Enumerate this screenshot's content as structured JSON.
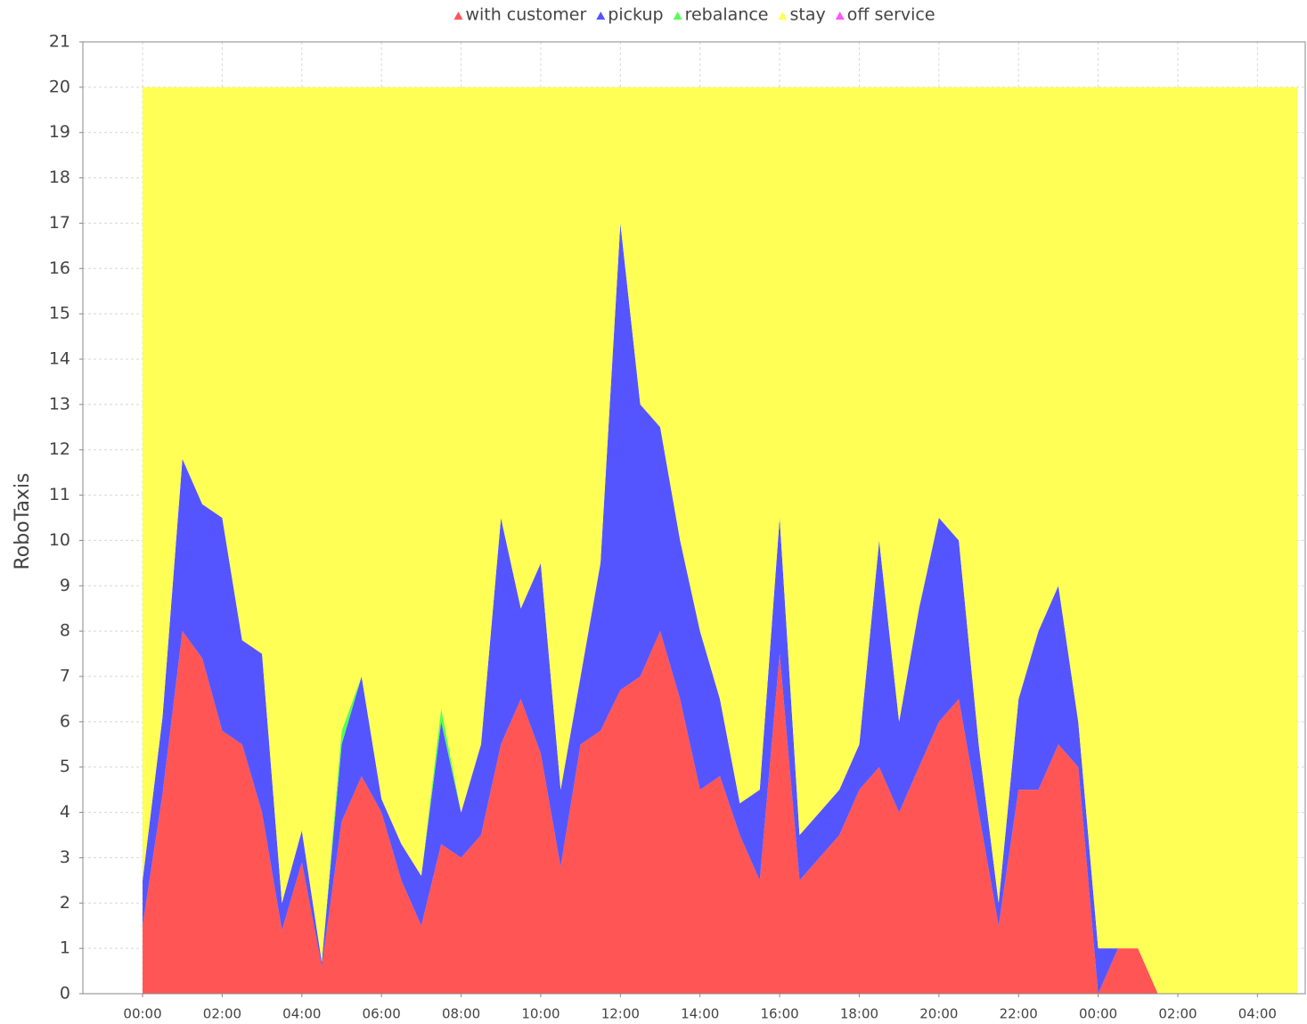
{
  "chart_data": {
    "type": "stacked_area",
    "y_label": "RoboTaxis",
    "x": [
      0,
      0.5,
      1,
      1.5,
      2,
      2.5,
      3,
      3.5,
      4,
      4.5,
      5,
      5.5,
      6,
      6.5,
      7,
      7.5,
      8,
      8.5,
      9,
      9.5,
      10,
      10.5,
      11,
      11.5,
      12,
      12.5,
      13,
      13.5,
      14,
      14.5,
      15,
      15.5,
      16,
      16.5,
      17,
      17.5,
      18,
      18.5,
      19,
      19.5,
      20,
      20.5,
      21,
      21.5,
      22,
      22.5,
      23,
      23.5,
      24,
      24.5,
      25,
      25.5,
      26,
      27,
      28,
      29
    ],
    "series": [
      {
        "name": "with customer",
        "color": "#ff5555",
        "values": [
          1.5,
          4.4,
          8.0,
          7.4,
          5.8,
          5.5,
          4.0,
          1.4,
          2.9,
          0.6,
          3.8,
          4.8,
          4.0,
          2.5,
          1.5,
          3.3,
          3.0,
          3.5,
          5.5,
          6.5,
          5.3,
          2.8,
          5.5,
          5.8,
          6.7,
          7.0,
          8.0,
          6.5,
          4.5,
          4.8,
          3.5,
          2.5,
          7.5,
          2.5,
          3.0,
          3.5,
          4.5,
          5.0,
          4.0,
          5.0,
          6.0,
          6.5,
          4.0,
          1.5,
          4.5,
          4.5,
          5.5,
          5.0,
          0,
          1,
          1,
          0,
          0,
          0,
          0,
          0
        ]
      },
      {
        "name": "pickup",
        "color": "#5555ff",
        "values": [
          1.0,
          1.7,
          3.8,
          3.4,
          4.7,
          2.3,
          3.5,
          0.6,
          0.7,
          0.1,
          1.7,
          2.2,
          0.3,
          0.8,
          1.1,
          2.7,
          1.0,
          2.0,
          5.0,
          2.0,
          4.2,
          1.7,
          1.5,
          3.7,
          10.3,
          6.0,
          4.5,
          3.5,
          3.5,
          1.7,
          0.7,
          2.0,
          3.0,
          1.0,
          1.0,
          1.0,
          1.0,
          5.0,
          2.0,
          3.5,
          4.5,
          3.5,
          1.5,
          0.5,
          2.0,
          3.5,
          3.5,
          1.0,
          1,
          0,
          0,
          0,
          0,
          0,
          0,
          0
        ]
      },
      {
        "name": "rebalance",
        "color": "#55ff55",
        "values": [
          0,
          0,
          0,
          0,
          0,
          0,
          0,
          0,
          0,
          0,
          0.3,
          0,
          0,
          0,
          0,
          0.3,
          0,
          0,
          0,
          0,
          0,
          0,
          0,
          0,
          0,
          0,
          0,
          0,
          0,
          0,
          0,
          0,
          0,
          0,
          0,
          0,
          0,
          0,
          0,
          0,
          0,
          0,
          0,
          0,
          0,
          0,
          0,
          0,
          0,
          0,
          0,
          0,
          0,
          0,
          0,
          0
        ]
      },
      {
        "name": "stay",
        "color": "#ffff55",
        "values": [
          17.5,
          13.9,
          8.2,
          9.2,
          9.5,
          12.2,
          12.5,
          18.0,
          16.4,
          19.3,
          14.2,
          13.0,
          15.7,
          16.7,
          17.4,
          13.7,
          16.0,
          14.5,
          9.5,
          11.5,
          10.5,
          15.5,
          13.0,
          10.5,
          3.0,
          7.0,
          7.5,
          10.0,
          12.0,
          13.5,
          15.8,
          15.5,
          9.5,
          16.5,
          16.0,
          15.5,
          14.5,
          10.0,
          14.0,
          11.5,
          9.5,
          10.0,
          14.5,
          18.0,
          13.5,
          12.0,
          11.0,
          14.0,
          19,
          19,
          19,
          20,
          20,
          20,
          20,
          20
        ]
      },
      {
        "name": "off service",
        "color": "#ff55ff",
        "values": [
          0,
          0,
          0,
          0,
          0,
          0,
          0,
          0,
          0,
          0,
          0,
          0,
          0,
          0,
          0,
          0,
          0,
          0,
          0,
          0,
          0,
          0,
          0,
          0,
          0,
          0,
          0,
          0,
          0,
          0,
          0,
          0,
          0,
          0,
          0,
          0,
          0,
          0,
          0,
          0,
          0,
          0,
          0,
          0,
          0,
          0,
          0,
          0,
          0,
          0,
          0,
          0,
          0,
          0,
          0,
          0
        ]
      }
    ],
    "xlim": [
      -1.5,
      29.2
    ],
    "ylim": [
      0,
      21
    ],
    "xticks": [
      {
        "value": 0,
        "label": "00:00"
      },
      {
        "value": 2,
        "label": "02:00"
      },
      {
        "value": 4,
        "label": "04:00"
      },
      {
        "value": 6,
        "label": "06:00"
      },
      {
        "value": 8,
        "label": "08:00"
      },
      {
        "value": 10,
        "label": "10:00"
      },
      {
        "value": 12,
        "label": "12:00"
      },
      {
        "value": 14,
        "label": "14:00"
      },
      {
        "value": 16,
        "label": "16:00"
      },
      {
        "value": 18,
        "label": "18:00"
      },
      {
        "value": 20,
        "label": "20:00"
      },
      {
        "value": 22,
        "label": "22:00"
      },
      {
        "value": 24,
        "label": "00:00"
      },
      {
        "value": 26,
        "label": "02:00"
      },
      {
        "value": 28,
        "label": "04:00"
      }
    ],
    "yticks": [
      0,
      1,
      2,
      3,
      4,
      5,
      6,
      7,
      8,
      9,
      10,
      11,
      12,
      13,
      14,
      15,
      16,
      17,
      18,
      19,
      20,
      21
    ],
    "grid": true
  }
}
